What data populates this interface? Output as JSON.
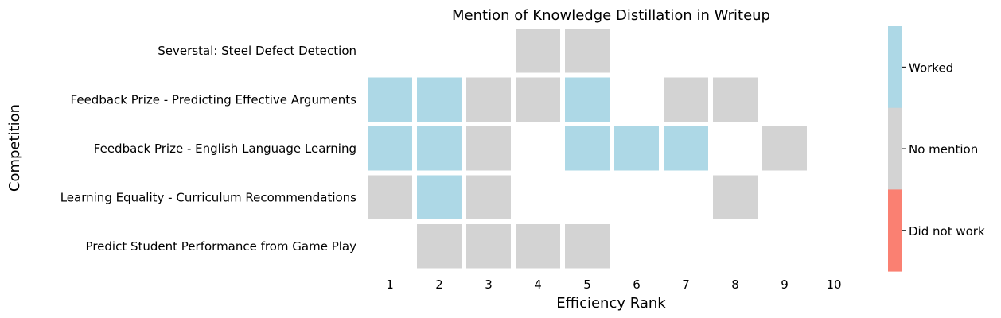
{
  "chart_data": {
    "type": "heatmap",
    "title": "Mention of Knowledge Distillation in Writeup",
    "xlabel": "Efficiency Rank",
    "ylabel": "Competition",
    "x": [
      "1",
      "2",
      "3",
      "4",
      "5",
      "6",
      "7",
      "8",
      "9",
      "10"
    ],
    "y": [
      "Severstal: Steel Defect Detection",
      "Feedback Prize - Predicting Effective Arguments",
      "Feedback Prize - English Language Learning",
      "Learning Equality - Curriculum Recommendations",
      "Predict Student Performance from Game Play"
    ],
    "legend": {
      "position": "right",
      "entries": [
        "Worked",
        "No mention",
        "Did not work"
      ]
    },
    "colors": {
      "Worked": "#add8e6",
      "No mention": "#d3d3d3",
      "Did not work": "#fa8072"
    },
    "values": [
      [
        null,
        null,
        null,
        0,
        0,
        null,
        null,
        null,
        null,
        null
      ],
      [
        1,
        1,
        0,
        0,
        1,
        null,
        0,
        0,
        null,
        null
      ],
      [
        1,
        1,
        0,
        null,
        1,
        1,
        1,
        null,
        0,
        null
      ],
      [
        0,
        1,
        0,
        null,
        null,
        null,
        null,
        0,
        null,
        null
      ],
      [
        null,
        0,
        0,
        0,
        0,
        null,
        null,
        null,
        null,
        null
      ]
    ],
    "value_legend": {
      "1": "Worked",
      "0": "No mention",
      "-1": "Did not work"
    }
  }
}
